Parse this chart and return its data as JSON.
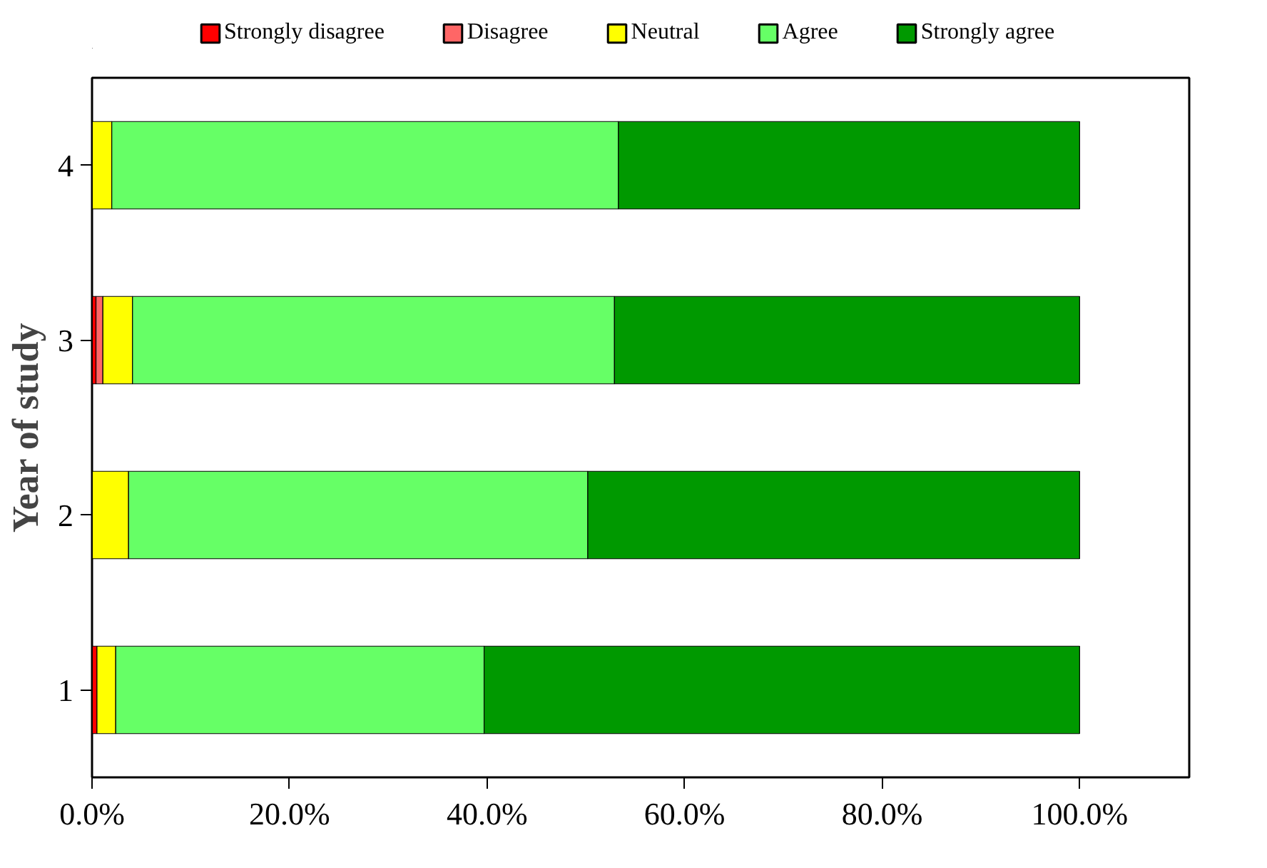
{
  "chart_data": {
    "type": "bar",
    "orientation": "horizontal",
    "stacked": true,
    "ylabel": "Year of study",
    "categories": [
      "4",
      "3",
      "2",
      "1"
    ],
    "series": [
      {
        "name": "Strongly disagree",
        "color": "#ff0000",
        "values": [
          0,
          0.4,
          0,
          0.5
        ]
      },
      {
        "name": "Disagree",
        "color": "#ff6666",
        "values": [
          0,
          0.7,
          0,
          0
        ]
      },
      {
        "name": "Neutral",
        "color": "#ffff00",
        "values": [
          2.0,
          3.0,
          3.7,
          1.9
        ]
      },
      {
        "name": "Agree",
        "color": "#66ff66",
        "values": [
          51.3,
          48.8,
          46.5,
          37.3
        ]
      },
      {
        "name": "Strongly agree",
        "color": "#009900",
        "values": [
          46.7,
          47.1,
          49.8,
          60.3
        ]
      }
    ],
    "xlim": [
      0,
      111.1
    ],
    "xticks": [
      {
        "value": 0,
        "label": "0.0%"
      },
      {
        "value": 20,
        "label": "20.0%"
      },
      {
        "value": 40,
        "label": "40.0%"
      },
      {
        "value": 60,
        "label": "60.0%"
      },
      {
        "value": 80,
        "label": "80.0%"
      },
      {
        "value": 100,
        "label": "100.0%"
      }
    ],
    "grid": false,
    "legend": "top"
  }
}
